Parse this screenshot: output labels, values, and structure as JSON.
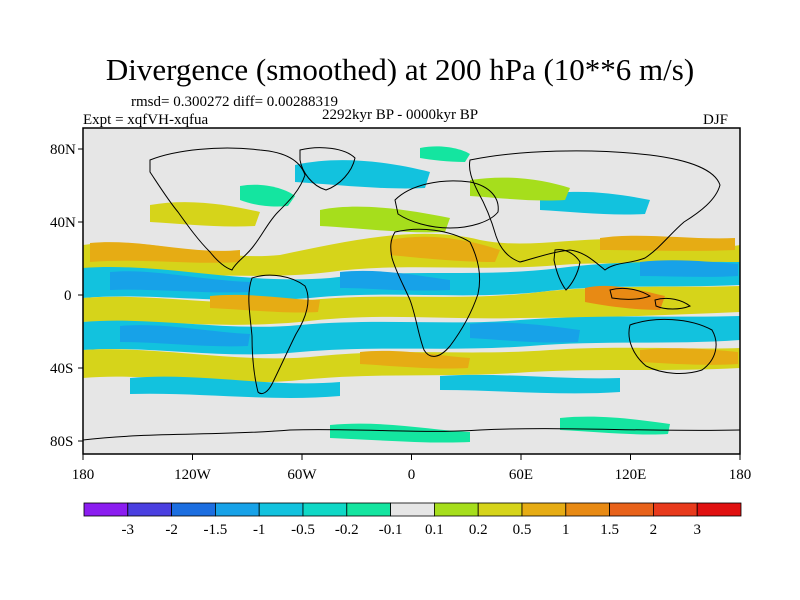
{
  "title": "Divergence (smoothed) at 200 hPa (10**6 m/s)",
  "stats": "rmsd= 0.300272 diff= 0.00288319",
  "expt": "Expt = xqfVH-xqfua",
  "period": "2292kyr BP - 0000kyr BP",
  "season": "DJF",
  "axes": {
    "lat_labels": [
      "80N",
      "40N",
      "0",
      "40S",
      "80S"
    ],
    "lon_labels": [
      "180",
      "120W",
      "60W",
      "0",
      "60E",
      "120E",
      "180"
    ]
  },
  "colorbar": {
    "labels": [
      "-3",
      "-2",
      "-1.5",
      "-1",
      "-0.5",
      "-0.2",
      "-0.1",
      "0.1",
      "0.2",
      "0.5",
      "1",
      "1.5",
      "2",
      "3"
    ],
    "colors": [
      "#8b1df0",
      "#4a3fe0",
      "#1c6ee0",
      "#17a2e8",
      "#12c2de",
      "#0fd8c6",
      "#14e5a0",
      "#e6e6e6",
      "#a6de1c",
      "#d6d41a",
      "#e6ac14",
      "#e88a14",
      "#e8621a",
      "#e83a1c",
      "#e01010"
    ]
  },
  "field_colors": {
    "ocean_bg": "#e6e6e6",
    "neg_strong": "#17a2e8",
    "neg_mid": "#12c2de",
    "neg_weak": "#14e5a0",
    "pos_weak": "#a6de1c",
    "pos_mid": "#d6d41a",
    "pos_strong": "#e6ac14",
    "pos_max": "#e88a14"
  }
}
